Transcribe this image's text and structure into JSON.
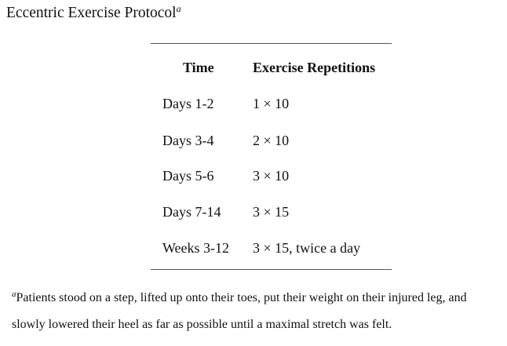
{
  "title": {
    "text": "Eccentric Exercise Protocol",
    "footnote_mark": "a"
  },
  "table": {
    "headers": [
      "Time",
      "Exercise Repetitions"
    ],
    "rows": [
      [
        "Days 1-2",
        "1 × 10"
      ],
      [
        "Days 3-4",
        "2 × 10"
      ],
      [
        "Days 5-6",
        "3 × 10"
      ],
      [
        "Days 7-14",
        "3 × 15"
      ],
      [
        "Weeks 3-12",
        "3 × 15, twice a day"
      ]
    ]
  },
  "footnote": {
    "mark": "a",
    "line1": "Patients stood on a step, lifted up onto their toes, put their weight on their injured leg, and",
    "line2": "slowly lowered their heel as far as possible until a maximal stretch was felt."
  }
}
